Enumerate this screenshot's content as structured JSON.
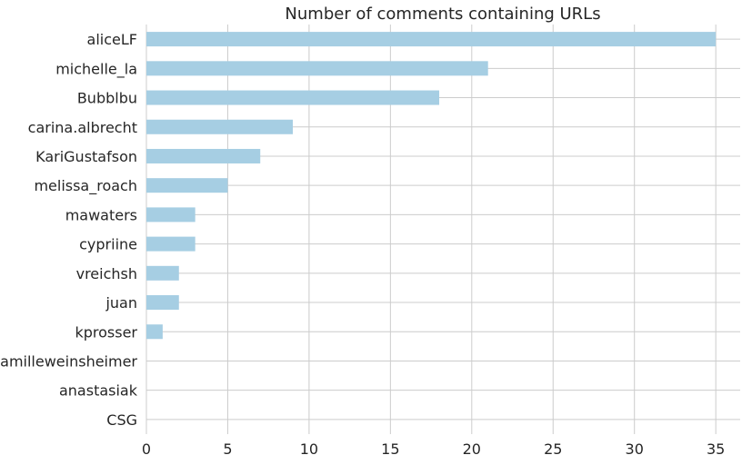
{
  "chart_data": {
    "type": "bar",
    "orientation": "horizontal",
    "title": "Number of comments containing URLs",
    "xlabel": "",
    "ylabel": "",
    "xlim": [
      0,
      36.5
    ],
    "x_ticks": [
      0,
      5,
      10,
      15,
      20,
      25,
      30,
      35
    ],
    "grid": true,
    "bar_color": "#a6cee3",
    "grid_color": "#cccccc",
    "categories": [
      "aliceLF",
      "michelle_la",
      "Bubblbu",
      "carina.albrecht",
      "KariGustafson",
      "melissa_roach",
      "mawaters",
      "cypriine",
      "vreichsh",
      "juan",
      "kprosser",
      "camilleweinsheimer",
      "anastasiak",
      "CSG"
    ],
    "values": [
      35,
      21,
      18,
      9,
      7,
      5,
      3,
      3,
      2,
      2,
      1,
      0,
      0,
      0
    ]
  }
}
